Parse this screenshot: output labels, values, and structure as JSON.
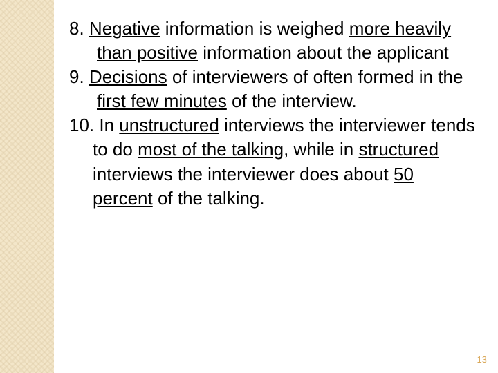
{
  "sidebar": {
    "background_color": "#f3e6c9",
    "pattern_color": "#d2be96"
  },
  "content": {
    "text_color": "#000000",
    "fontsize": 26,
    "point8": {
      "num": "8.",
      "seg1": "Negative",
      "seg2": " information is weighed ",
      "seg3": "more heavily",
      "seg4": " ",
      "seg5": "than positive",
      "seg6": " information about the applicant"
    },
    "point9": {
      "num": "9.",
      "seg1": "Decisions",
      "seg2": " of interviewers of often formed in the ",
      "seg3": "first few minutes",
      "seg4": " of the interview."
    },
    "point10": {
      "num": "10.",
      "seg1": " In ",
      "seg2": "unstructured",
      "seg3": " interviews the interviewer tends to do ",
      "seg4": "most of the talking",
      "seg5": ", while in ",
      "seg6": "structured",
      "seg7": " interviews the interviewer does about ",
      "seg8": "50 percent",
      "seg9": " of the talking."
    }
  },
  "page_number": "13",
  "page_number_color": "#d9a85a"
}
